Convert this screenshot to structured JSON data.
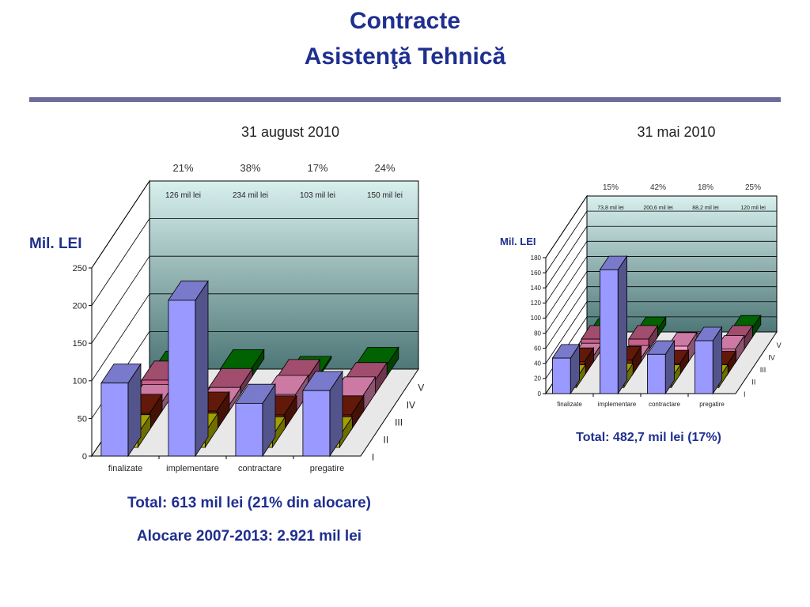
{
  "header": {
    "title_line1": "Contracte",
    "title_line2": "Asistenţă Tehnică"
  },
  "left": {
    "date": "31 august 2010",
    "unit_label": "Mil. LEI",
    "total": "Total: 613 mil lei (21% din alocare)",
    "allocation": "Alocare 2007-2013: 2.921 mil lei"
  },
  "right": {
    "date": "31 mai 2010",
    "unit_label": "Mil. LEI",
    "total": "Total: 482,7 mil lei (17%)"
  },
  "colors": {
    "I": "#c8c800",
    "II": "#7b1f0d",
    "III": "#ff99cc",
    "IV": "#c8608a",
    "V": "#007a00",
    "total_bar": "#9999ff",
    "back_wall": "#6a9a9a"
  },
  "chart_data": [
    {
      "type": "bar",
      "subtype": "3d-column",
      "title": "31 august 2010",
      "ylabel": "Mil. LEI",
      "ylim": [
        0,
        250
      ],
      "yticks": [
        "0",
        "50",
        "100",
        "150",
        "200",
        "250"
      ],
      "categories": [
        "finalizate",
        "implementare",
        "contractare",
        "pregatire"
      ],
      "depth_series": [
        "I",
        "II",
        "III",
        "IV",
        "V"
      ],
      "series": [
        {
          "name": "",
          "values": [
            97,
            207,
            70,
            87
          ]
        },
        {
          "name": "I",
          "values": [
            18,
            20,
            15,
            15
          ]
        },
        {
          "name": "II",
          "values": [
            22,
            25,
            20,
            20
          ]
        },
        {
          "name": "III",
          "values": [
            12,
            8,
            24,
            22
          ]
        },
        {
          "name": "IV",
          "values": [
            20,
            10,
            22,
            18
          ]
        },
        {
          "name": "V",
          "values": [
            10,
            12,
            3,
            15
          ]
        }
      ],
      "percent_labels": [
        "21%",
        "38%",
        "17%",
        "24%"
      ],
      "value_labels": [
        "126 mil lei",
        "234 mil lei",
        "103 mil lei",
        "150 mil lei"
      ]
    },
    {
      "type": "bar",
      "subtype": "3d-column",
      "title": "31 mai 2010",
      "ylabel": "Mil. LEI",
      "ylim": [
        0,
        180
      ],
      "yticks": [
        "0",
        "20",
        "40",
        "60",
        "80",
        "100",
        "120",
        "140",
        "160",
        "180"
      ],
      "categories": [
        "finalizate",
        "implementare",
        "contractare",
        "pregatire"
      ],
      "depth_series": [
        "I",
        "II",
        "III",
        "IV",
        "V"
      ],
      "series": [
        {
          "name": "",
          "values": [
            47,
            164,
            52,
            70
          ]
        },
        {
          "name": "I",
          "values": [
            12,
            14,
            12,
            12
          ]
        },
        {
          "name": "II",
          "values": [
            18,
            20,
            15,
            14
          ]
        },
        {
          "name": "III",
          "values": [
            8,
            5,
            22,
            18
          ]
        },
        {
          "name": "IV",
          "values": [
            15,
            15,
            5,
            15
          ]
        },
        {
          "name": "V",
          "values": [
            8,
            10,
            0,
            12
          ]
        }
      ],
      "percent_labels": [
        "15%",
        "42%",
        "18%",
        "25%"
      ],
      "value_labels": [
        "73,8 mil lei",
        "200,6 mil lei",
        "88,2 mil lei",
        "120 mil lei"
      ]
    }
  ]
}
